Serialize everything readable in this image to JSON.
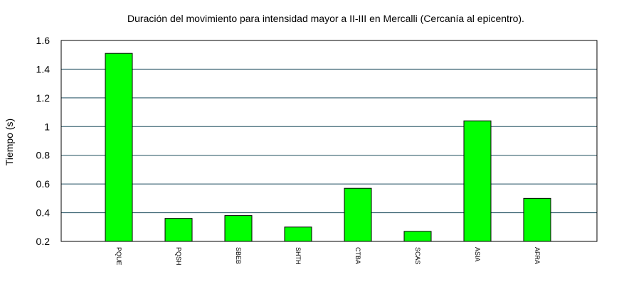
{
  "chart_data": {
    "type": "bar",
    "title": "Duración del movimiento para intensidad mayor a II-III en Mercalli (Cercanía al epicentro).",
    "xlabel": "",
    "ylabel": "Tiempo (s)",
    "categories": [
      "PQUE",
      "PQSH",
      "SBEB",
      "SHTH",
      "CTBA",
      "SCAS",
      "ASIA",
      "AFRA"
    ],
    "values": [
      1.51,
      0.36,
      0.38,
      0.3,
      0.57,
      0.27,
      1.04,
      0.5
    ],
    "ylim": [
      0.2,
      1.6
    ],
    "yticks": [
      "0.2",
      "0.4",
      "0.6",
      "0.8",
      "1",
      "1.2",
      "1.4",
      "1.6"
    ],
    "grid": true,
    "legend": "none",
    "colors": {
      "bar_fill": "#00ff00",
      "bar_stroke": "#000000",
      "grid": "#1f4e5f",
      "axis": "#000000"
    }
  }
}
